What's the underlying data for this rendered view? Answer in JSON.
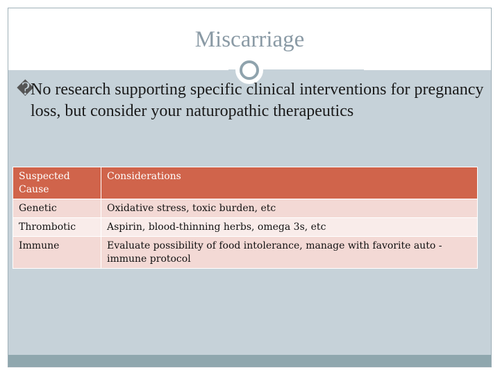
{
  "slide": {
    "title": "Miscarriage",
    "bullet_marker": "�",
    "bullet_text": "No research supporting specific clinical interventions for pregnancy loss, but consider your naturopathic therapeutics"
  },
  "table": {
    "headers": [
      "Suspected Cause",
      "Considerations"
    ],
    "rows": [
      {
        "cause": "Genetic",
        "considerations": "Oxidative stress, toxic burden, etc"
      },
      {
        "cause": "Thrombotic",
        "considerations": "Aspirin, blood-thinning herbs, omega 3s, etc"
      },
      {
        "cause": "Immune",
        "considerations": "Evaluate possibility of food intolerance, manage with favorite auto -immune protocol"
      }
    ]
  },
  "colors": {
    "header_fill": "#d0644b",
    "content_background": "#c6d2d9",
    "footer": "#8fa7ae",
    "title_text": "#8a9aa5"
  }
}
